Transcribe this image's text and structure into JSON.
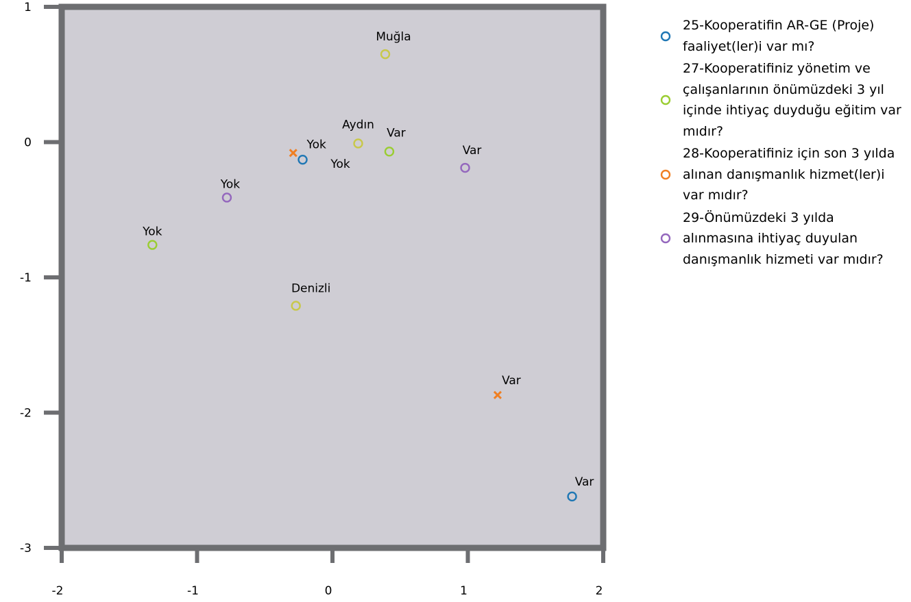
{
  "chart_data": {
    "type": "scatter",
    "title": "",
    "xlabel": "",
    "ylabel": "",
    "xlim": [
      -2,
      2
    ],
    "ylim": [
      -3,
      1
    ],
    "x_ticks": [
      -2,
      -1,
      0,
      1,
      2
    ],
    "y_ticks": [
      1,
      0,
      -1,
      -2,
      -3
    ],
    "x_tick_labels": [
      "-2",
      "-1",
      "0",
      "1",
      "2"
    ],
    "y_tick_labels": [
      "1",
      "0",
      "-1",
      "-2",
      "-3"
    ],
    "plot_background": "#cfcdd4",
    "frame_color": "#6d6e71",
    "legend_position": "right",
    "series": [
      {
        "name": "25-Kooperatifin AR-GE (Proje) faaliyet(ler)i var mı?",
        "color": "#1f77b4",
        "marker": "circle",
        "points": [
          {
            "x": -0.22,
            "y": -0.13,
            "label": "Yok"
          },
          {
            "x": 1.77,
            "y": -2.62,
            "label": "Var"
          }
        ]
      },
      {
        "name": "27-Kooperatifiniz yönetim ve çalışanlarının önümüzdeki 3 yıl içinde ihtiyaç duyduğu eğitim var mıdır?",
        "color": "#9acd32",
        "marker": "circle",
        "points": [
          {
            "x": -1.33,
            "y": -0.76,
            "label": "Yok"
          },
          {
            "x": 0.42,
            "y": -0.07,
            "label": "Var"
          }
        ]
      },
      {
        "name": "28-Kooperatifiniz için son 3 yılda alınan danışmanlık hizmet(ler)i var mıdır?",
        "color": "#f07f22",
        "marker": "x",
        "points": [
          {
            "x": -0.29,
            "y": -0.08,
            "label": "Yok"
          },
          {
            "x": 1.22,
            "y": -1.87,
            "label": "Var"
          }
        ]
      },
      {
        "name": "29-Önümüzdeki 3 yılda alınmasına ihtiyaç duyulan danışmanlık hizmeti var mıdır?",
        "color": "#9467bd",
        "marker": "circle",
        "points": [
          {
            "x": -0.78,
            "y": -0.41,
            "label": "Yok"
          },
          {
            "x": 0.98,
            "y": -0.19,
            "label": "Var"
          }
        ]
      },
      {
        "name": "",
        "color": "#c8c84a",
        "marker": "circle",
        "legend": false,
        "points": [
          {
            "x": 0.39,
            "y": 0.65,
            "label": "Muğla"
          },
          {
            "x": 0.19,
            "y": -0.01,
            "label": "Aydın"
          },
          {
            "x": -0.27,
            "y": -1.21,
            "label": "Denizli"
          }
        ]
      }
    ]
  },
  "legend": {
    "items": [
      {
        "text": "25-Kooperatifin AR-GE (Proje) faaliyet(ler)i var mı?",
        "color": "#1f77b4"
      },
      {
        "text": "27-Kooperatifiniz yönetim ve çalışanlarının önümüzdeki 3 yıl içinde ihtiyaç duyduğu eğitim var mıdır?",
        "color": "#9acd32"
      },
      {
        "text": "28-Kooperatifiniz için son 3 yılda alınan danışmanlık hizmet(ler)i var mıdır?",
        "color": "#f07f22"
      },
      {
        "text": "29-Önümüzdeki 3 yılda alınmasına ihtiyaç duyulan danışmanlık hizmeti var mıdır?",
        "color": "#9467bd"
      }
    ]
  }
}
